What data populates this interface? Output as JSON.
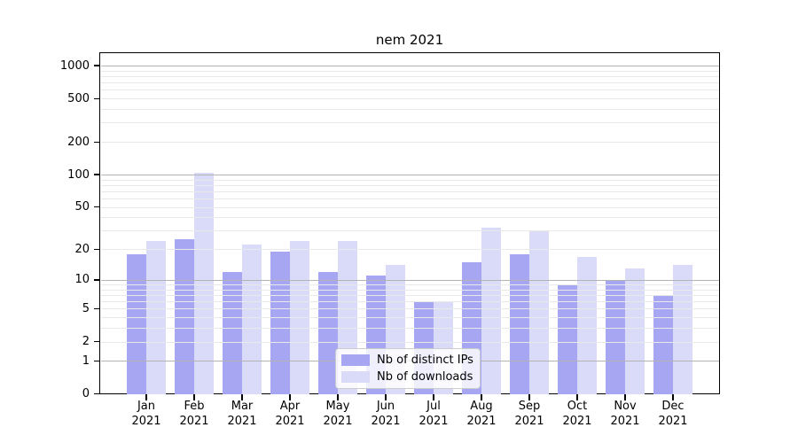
{
  "title": "nem 2021",
  "legend": {
    "items": [
      {
        "label": "Nb of distinct IPs",
        "color": "#a6a6f2"
      },
      {
        "label": "Nb of downloads",
        "color": "#dadaf9"
      }
    ]
  },
  "chart_data": {
    "type": "bar",
    "title": "nem 2021",
    "categories": [
      "Jan",
      "Feb",
      "Mar",
      "Apr",
      "May",
      "Jun",
      "Jul",
      "Aug",
      "Sep",
      "Oct",
      "Nov",
      "Dec"
    ],
    "category_year": "2021",
    "series": [
      {
        "name": "Nb of distinct IPs",
        "color": "#a6a6f2",
        "values": [
          18,
          25,
          12,
          19,
          12,
          11,
          6,
          15,
          18,
          9,
          10,
          7
        ]
      },
      {
        "name": "Nb of downloads",
        "color": "#dadaf9",
        "values": [
          24,
          104,
          22,
          24,
          24,
          14,
          6,
          32,
          30,
          17,
          13,
          14
        ]
      }
    ],
    "xlabel": "",
    "ylabel": "",
    "yscale": "log10(value+1)",
    "ylim": [
      0,
      1300
    ],
    "ytick_values": [
      0,
      1,
      2,
      5,
      10,
      20,
      50,
      100,
      200,
      500,
      1000
    ],
    "ytick_labels": [
      "0",
      "1",
      "2",
      "5",
      "10",
      "20",
      "50",
      "100",
      "200",
      "500",
      "1000"
    ],
    "grid": true,
    "grid_major_values": [
      1,
      10,
      100,
      1000
    ],
    "grid_minor_values": [
      2,
      3,
      4,
      5,
      6,
      7,
      8,
      9,
      20,
      30,
      40,
      50,
      60,
      70,
      80,
      90,
      200,
      300,
      400,
      500,
      600,
      700,
      800,
      900
    ],
    "grid_major_color": "#b3b3b3",
    "grid_minor_color": "#e9e9e9",
    "legend_position": "lower center"
  }
}
